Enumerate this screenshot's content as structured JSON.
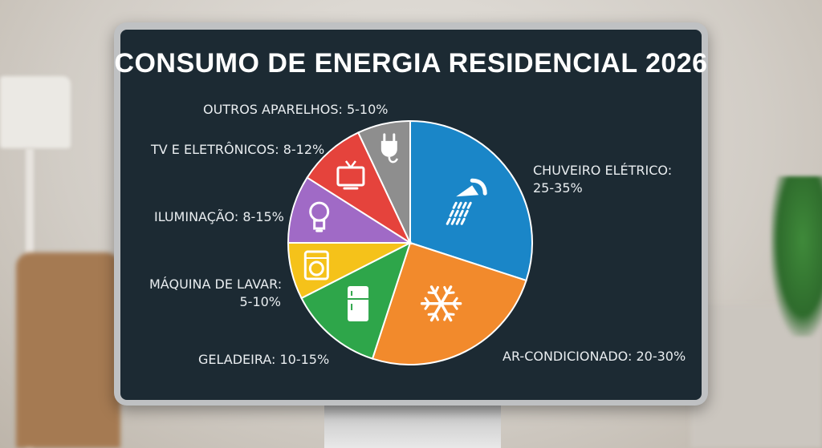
{
  "chart_data": {
    "type": "pie",
    "title": "CONSUMO DE ENERGIA RESIDENCIAL 2026",
    "series": [
      {
        "name": "CHUVEIRO ELÉTRICO",
        "range": "25-35%",
        "value": 30,
        "color": "#1a86c8",
        "icon": "shower-icon"
      },
      {
        "name": "AR-CONDICIONADO",
        "range": "20-30%",
        "value": 25,
        "color": "#f28a2c",
        "icon": "snowflake-icon"
      },
      {
        "name": "GELADEIRA",
        "range": "10-15%",
        "value": 12.5,
        "color": "#2ea64a",
        "icon": "refrigerator-icon"
      },
      {
        "name": "MÁQUINA DE LAVAR",
        "range": "5-10%",
        "value": 7.5,
        "color": "#f5c21a",
        "icon": "washing-machine-icon"
      },
      {
        "name": "ILUMINAÇÃO",
        "range": "8-15%",
        "value": 9,
        "color": "#a06ac6",
        "icon": "lightbulb-icon"
      },
      {
        "name": "TV E ELETRÔNICOS",
        "range": "8-12%",
        "value": 9,
        "color": "#e5433c",
        "icon": "tv-icon"
      },
      {
        "name": "OUTROS APARELHOS",
        "range": "5-10%",
        "value": 7,
        "color": "#8e8e8e",
        "icon": "plug-icon"
      }
    ]
  },
  "labels": {
    "chuveiro_line1": "CHUVEIRO ELÉTRICO:",
    "chuveiro_line2": "25-35%",
    "ar": "AR-CONDICIONADO: 20-30%",
    "geladeira": "GELADEIRA: 10-15%",
    "maquina_line1": "MÁQUINA DE LAVAR:",
    "maquina_line2": "5-10%",
    "iluminacao": "ILUMINAÇÃO: 8-15%",
    "tv": "TV E ELETRÔNICOS: 8-12%",
    "outros": "OUTROS APARELHOS: 5-10%"
  }
}
